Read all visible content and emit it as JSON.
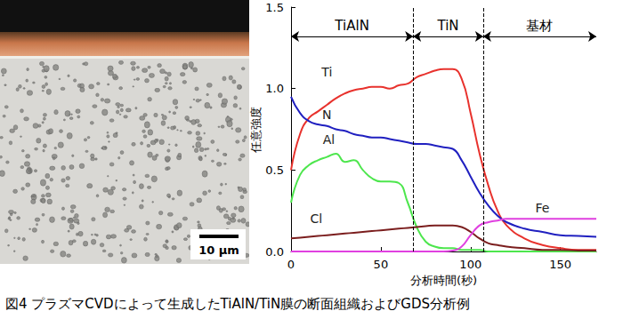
{
  "chart_data": {
    "type": "line",
    "x_label": "分析時間(秒)",
    "y_label": "任意強度",
    "x": [
      0,
      5,
      10,
      15,
      20,
      25,
      30,
      35,
      40,
      45,
      50,
      55,
      60,
      65,
      70,
      75,
      80,
      85,
      90,
      95,
      100,
      105,
      110,
      115,
      120,
      130,
      140,
      150,
      160,
      170
    ],
    "series": [
      {
        "name": "Ti",
        "color": "#e8322d",
        "values": [
          0.5,
          0.72,
          0.82,
          0.86,
          0.9,
          0.94,
          0.97,
          0.99,
          1.0,
          1.01,
          1.01,
          1.0,
          1.02,
          1.03,
          1.07,
          1.09,
          1.11,
          1.12,
          1.12,
          1.06,
          0.85,
          0.6,
          0.4,
          0.25,
          0.16,
          0.08,
          0.04,
          0.02,
          0.01,
          0.01
        ]
      },
      {
        "name": "N",
        "color": "#2020c0",
        "values": [
          0.95,
          0.85,
          0.8,
          0.78,
          0.77,
          0.75,
          0.74,
          0.72,
          0.71,
          0.7,
          0.7,
          0.69,
          0.68,
          0.67,
          0.66,
          0.66,
          0.65,
          0.64,
          0.63,
          0.56,
          0.46,
          0.36,
          0.28,
          0.22,
          0.18,
          0.14,
          0.12,
          0.1,
          0.095,
          0.09
        ]
      },
      {
        "name": "Al",
        "color": "#4de64d",
        "values": [
          0.3,
          0.47,
          0.53,
          0.56,
          0.58,
          0.6,
          0.55,
          0.56,
          0.5,
          0.45,
          0.43,
          0.43,
          0.42,
          0.3,
          0.15,
          0.06,
          0.03,
          0.02,
          0.02,
          0.01,
          0.01,
          0.01,
          0,
          0,
          0,
          0,
          0,
          0,
          0,
          0
        ]
      },
      {
        "name": "Cl",
        "color": "#7b1e1e",
        "values": [
          0.08,
          0.085,
          0.09,
          0.095,
          0.1,
          0.105,
          0.11,
          0.115,
          0.12,
          0.125,
          0.13,
          0.135,
          0.14,
          0.145,
          0.15,
          0.155,
          0.16,
          0.16,
          0.16,
          0.15,
          0.12,
          0.08,
          0.05,
          0.04,
          0.03,
          0.02,
          0.01,
          0.01,
          0.005,
          0.005
        ]
      },
      {
        "name": "Fe",
        "color": "#e040e0",
        "values": [
          0,
          0,
          0,
          0,
          0,
          0,
          0,
          0,
          0,
          0,
          0,
          0,
          0,
          0,
          0,
          0,
          0,
          0,
          0.005,
          0.03,
          0.1,
          0.16,
          0.18,
          0.19,
          0.2,
          0.2,
          0.2,
          0.2,
          0.2,
          0.2
        ]
      }
    ],
    "marker": "none",
    "xlim": [
      0,
      170
    ],
    "xticks": [
      0,
      50,
      100,
      150
    ],
    "ylim": [
      0,
      1.5
    ],
    "yticks": [
      {
        "value": 0,
        "label": "0.0"
      },
      0.5,
      {
        "value": 1,
        "label": "1.0"
      },
      1.5
    ],
    "grid": false,
    "regions": [
      {
        "label": "TiAlN",
        "from": 0,
        "to": 68
      },
      {
        "label": "TiN",
        "from": 68,
        "to": 107
      },
      {
        "label": "基材",
        "from": 107,
        "to": 170
      }
    ]
  },
  "micrograph": {
    "scale_bar": "10 µm"
  },
  "caption": "図4 プラズマCVDによって生成したTiAlN/TiN膜の断面組織およびGDS分析例"
}
